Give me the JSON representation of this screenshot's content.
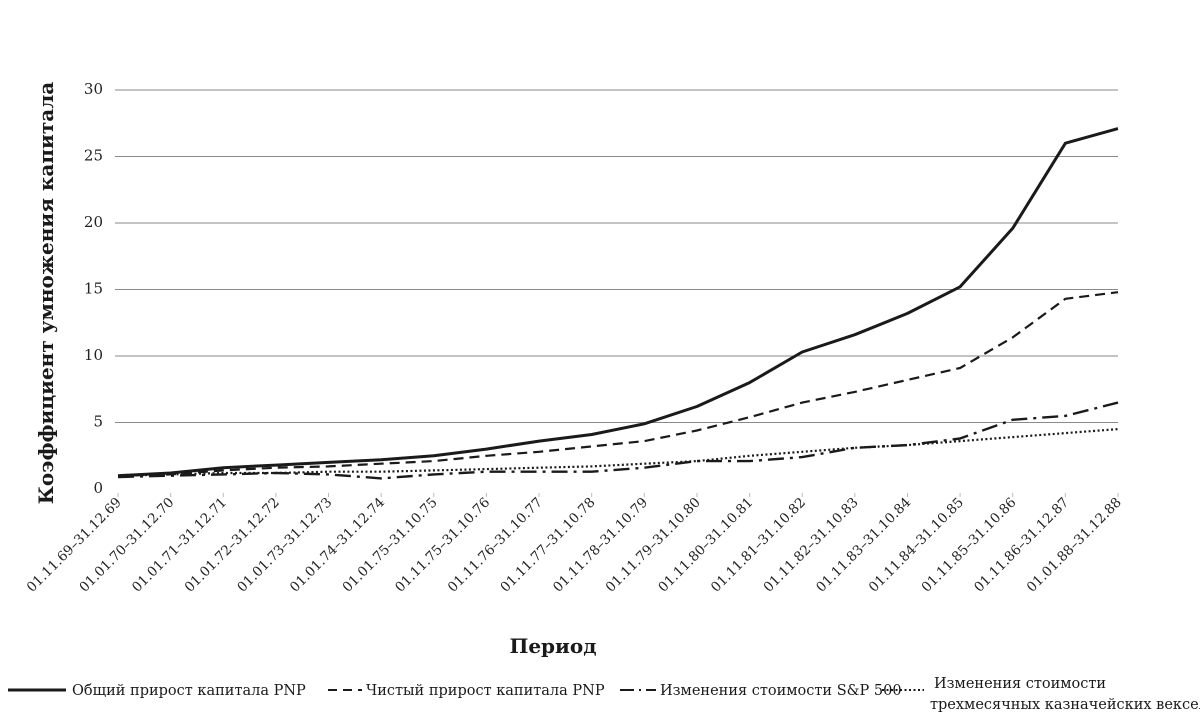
{
  "chart_data": {
    "type": "line",
    "xlabel": "Период",
    "ylabel": "Коэффициент умножения капитала",
    "ylim": [
      0,
      30
    ],
    "yticks": [
      0,
      5,
      10,
      15,
      20,
      25,
      30
    ],
    "grid": true,
    "legend_position": "bottom",
    "categories": [
      "01.11.69–31.12.69",
      "01.01.70–31.12.70",
      "01.01.71–31.12.71",
      "01.01.72–31.12.72",
      "01.01.73–31.12.73",
      "01.01.74–31.12.74",
      "01.01.75–31.10.75",
      "01.11.75–31.10.76",
      "01.11.76–31.10.77",
      "01.11.77–31.10.78",
      "01.11.78–31.10.79",
      "01.11.79–31.10.80",
      "01.11.80–31.10.81",
      "01.11.81–31.10.82",
      "01.11.82–31.10.83",
      "01.11.83–31.10.84",
      "01.11.84–31.10.85",
      "01.11.85–31.10.86",
      "01.11.86–31.12.87",
      "01.01.88–31.12.88"
    ],
    "series": [
      {
        "name": "Общий прирост капитала PNP",
        "dash": "solid",
        "values": [
          1.0,
          1.2,
          1.6,
          1.8,
          2.0,
          2.2,
          2.5,
          3.0,
          3.6,
          4.1,
          4.9,
          6.2,
          8.0,
          10.3,
          11.6,
          13.2,
          15.2,
          19.6,
          26.0,
          27.1
        ]
      },
      {
        "name": "Чистый прирост капитала PNP",
        "dash": "dashed",
        "values": [
          1.0,
          1.1,
          1.4,
          1.6,
          1.7,
          1.9,
          2.1,
          2.5,
          2.8,
          3.2,
          3.6,
          4.4,
          5.4,
          6.5,
          7.3,
          8.2,
          9.1,
          11.4,
          14.3,
          14.8
        ]
      },
      {
        "name": "Изменения стоимости S&P 500",
        "dash": "dashdot",
        "values": [
          0.9,
          1.0,
          1.1,
          1.2,
          1.1,
          0.8,
          1.1,
          1.3,
          1.3,
          1.3,
          1.6,
          2.1,
          2.1,
          2.4,
          3.1,
          3.3,
          3.8,
          5.2,
          5.5,
          6.5
        ]
      },
      {
        "name": "Изменения стоимости трехмесячных казначейских векселей",
        "dash": "dotted",
        "values": [
          1.0,
          1.1,
          1.2,
          1.2,
          1.3,
          1.3,
          1.4,
          1.5,
          1.6,
          1.7,
          1.9,
          2.1,
          2.5,
          2.8,
          3.1,
          3.3,
          3.6,
          3.9,
          4.2,
          4.5
        ]
      }
    ],
    "legend": [
      {
        "label": "Общий прирост капитала PNP"
      },
      {
        "label": "Чистый прирост капитала PNP"
      },
      {
        "label": "Изменения стоимости S&P 500"
      },
      {
        "label_line1": "Изменения стоимости",
        "label_line2": "трехмесячных казначейских векселей"
      }
    ]
  }
}
